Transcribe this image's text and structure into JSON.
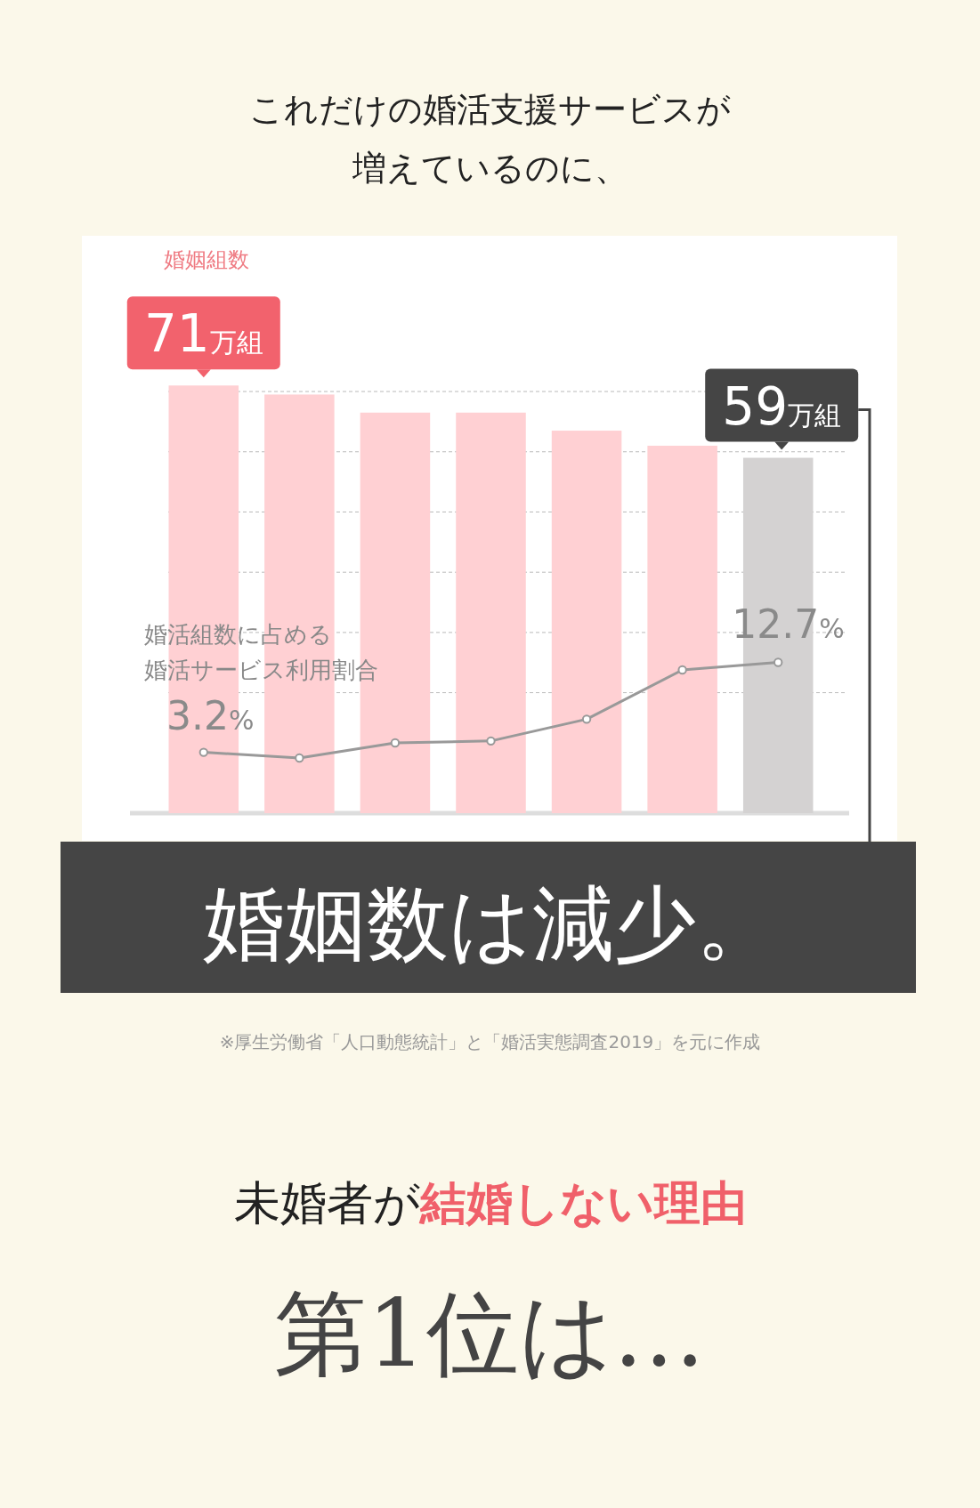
{
  "chart_data": [
    {
      "type": "bar",
      "title": "これだけの婚活支援サービスが増えているのに、",
      "categories": [
        null,
        null,
        null,
        null,
        null,
        null,
        null
      ],
      "series": [
        {
          "name": "婚姻組数",
          "colors": [
            "#ffd0d3",
            "#ffd0d3",
            "#ffd0d3",
            "#ffd0d3",
            "#ffd0d3",
            "#ffd0d3",
            "#d4d2d2"
          ],
          "values": [
            71,
            69.5,
            66.5,
            66.5,
            63.5,
            61,
            59
          ],
          "value_labels": [
            "71万組",
            null,
            null,
            null,
            null,
            null,
            "59万組"
          ]
        }
      ],
      "yticks": [
        {
          "value": 20,
          "label": null
        },
        {
          "value": 30,
          "label": null
        },
        {
          "value": 40,
          "label": null
        },
        {
          "value": 50,
          "label": null
        },
        {
          "value": 60,
          "label": null
        },
        {
          "value": 70,
          "label": null
        }
      ],
      "grid": "y",
      "annotations": [
        "婚姻数は減少。",
        "※厚生労働省「人口動態統計」と「婚活実態調査2019」を元に作成",
        "未婚者が",
        "結婚しない理由",
        "第1位は…"
      ]
    },
    {
      "type": "line",
      "categories": [
        null,
        null,
        null,
        null,
        null,
        null,
        null
      ],
      "series": [
        {
          "name": "婚活組数に占める婚活サービス利用割合",
          "color": "#999999",
          "values": [
            3.2,
            2.6,
            4.2,
            4.4,
            6.7,
            11.9,
            12.7
          ],
          "value_labels": [
            "3.2%",
            null,
            null,
            null,
            null,
            null,
            "12.7%"
          ]
        }
      ],
      "marker": "circle"
    }
  ]
}
